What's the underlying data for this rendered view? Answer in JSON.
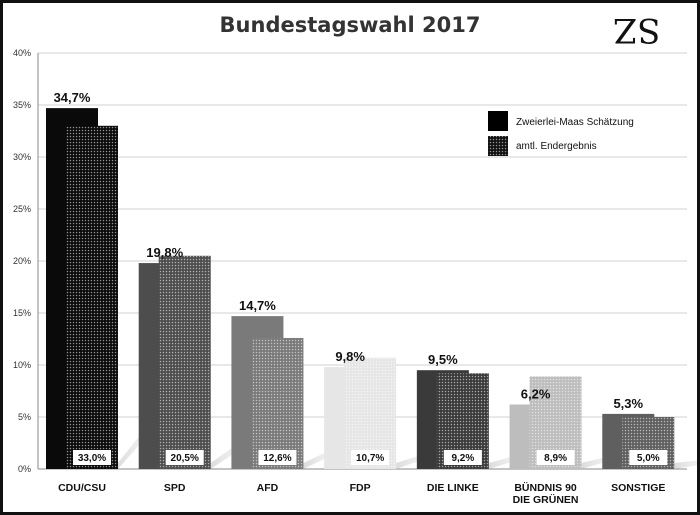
{
  "logo_text": "SZ",
  "chart_data": {
    "type": "bar",
    "title": "Bundestagswahl 2017",
    "xlabel": "",
    "ylabel": "",
    "ylim": [
      0,
      40
    ],
    "yticks": [
      "0%",
      "5%",
      "10%",
      "15%",
      "20%",
      "25%",
      "30%",
      "35%",
      "40%"
    ],
    "grid": true,
    "legend_position": "top-right",
    "categories": [
      [
        "CDU/CSU"
      ],
      [
        "SPD"
      ],
      [
        "AFD"
      ],
      [
        "FDP"
      ],
      [
        "DIE LINKE"
      ],
      [
        "BÜNDNIS 90",
        "DIE GRÜNEN"
      ],
      [
        "SONSTIGE"
      ]
    ],
    "category_colors": [
      "#0a0a0a",
      "#4d4d4d",
      "#7a7a7a",
      "#e6e6e6",
      "#3a3a3a",
      "#bdbdbd",
      "#5f5f5f"
    ],
    "series": [
      {
        "name": "Zweierlei-Maas Schätzung",
        "values": [
          34.7,
          19.8,
          14.7,
          9.8,
          9.5,
          6.2,
          5.3
        ],
        "labels": [
          "34,7%",
          "19,8%",
          "14,7%",
          "9,8%",
          "9,5%",
          "6,2%",
          "5,3%"
        ]
      },
      {
        "name": "amtl. Endergebnis",
        "values": [
          33.0,
          20.5,
          12.6,
          10.7,
          9.2,
          8.9,
          5.0
        ],
        "labels": [
          "33,0%",
          "20,5%",
          "12,6%",
          "10,7%",
          "9,2%",
          "8,9%",
          "5,0%"
        ]
      }
    ]
  }
}
